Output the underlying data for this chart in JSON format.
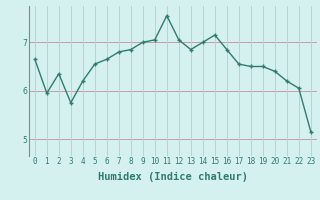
{
  "x": [
    0,
    1,
    2,
    3,
    4,
    5,
    6,
    7,
    8,
    9,
    10,
    11,
    12,
    13,
    14,
    15,
    16,
    17,
    18,
    19,
    20,
    21,
    22,
    23
  ],
  "y": [
    6.65,
    5.95,
    6.35,
    5.75,
    6.2,
    6.55,
    6.65,
    6.8,
    6.85,
    7.0,
    7.05,
    7.55,
    7.05,
    6.85,
    7.0,
    7.15,
    6.85,
    6.55,
    6.5,
    6.5,
    6.4,
    6.2,
    6.05,
    5.15
  ],
  "line_color": "#2e7d6e",
  "marker": "+",
  "marker_size": 3,
  "linewidth": 1.0,
  "xlabel": "Humidex (Indice chaleur)",
  "xlim": [
    -0.5,
    23.5
  ],
  "ylim": [
    4.65,
    7.75
  ],
  "xtick_labels": [
    "0",
    "1",
    "2",
    "3",
    "4",
    "5",
    "6",
    "7",
    "8",
    "9",
    "10",
    "11",
    "12",
    "13",
    "14",
    "15",
    "16",
    "17",
    "18",
    "19",
    "20",
    "21",
    "22",
    "23"
  ],
  "yticks": [
    5,
    6,
    7
  ],
  "bg_color": "#d4f0ef",
  "grid_color_h": "#c8a0a0",
  "grid_color_v": "#b8d4d0",
  "tick_label_fontsize": 5.5,
  "xlabel_fontsize": 7.5
}
